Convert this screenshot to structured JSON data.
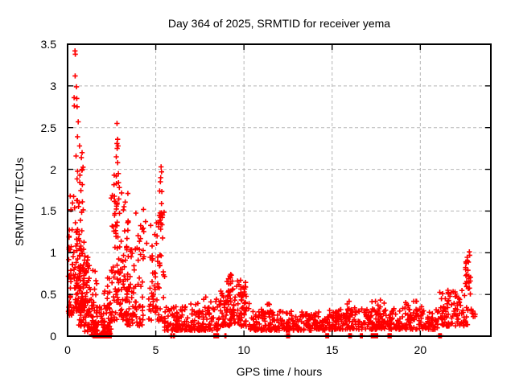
{
  "chart_data": {
    "type": "scatter",
    "title": "Day 364 of 2025, SRMTID for receiver yema",
    "xlabel": "GPS time / hours",
    "ylabel": "SRMTID / TECUs",
    "xlim": [
      0,
      24
    ],
    "ylim": [
      0,
      3.5
    ],
    "xticks": [
      0,
      5,
      10,
      15,
      20
    ],
    "xtick_labels": [
      "0",
      "5",
      "10",
      "15",
      "20"
    ],
    "yticks": [
      0,
      0.5,
      1,
      1.5,
      2,
      2.5,
      3,
      3.5
    ],
    "ytick_labels": [
      "0",
      "0.5",
      "1",
      "1.5",
      "2",
      "2.5",
      "3",
      "3.5"
    ],
    "grid": true,
    "grid_style": "dashed",
    "legend": null,
    "marker": {
      "shape": "plus",
      "color": "#ff0000",
      "size": 7,
      "stroke_width": 1.6
    },
    "axis_color": "#000000",
    "grid_color": "#b5b5b5",
    "background": "#ffffff",
    "seed": 1337,
    "notable_points": [
      [
        0.42,
        3.42
      ],
      [
        0.44,
        3.38
      ],
      [
        0.43,
        3.12
      ],
      [
        0.5,
        2.99
      ],
      [
        0.37,
        2.86
      ],
      [
        0.52,
        2.85
      ],
      [
        0.38,
        2.76
      ],
      [
        0.54,
        2.75
      ],
      [
        0.6,
        2.57
      ],
      [
        0.56,
        2.39
      ],
      [
        0.68,
        2.28
      ],
      [
        0.82,
        2.2
      ],
      [
        0.48,
        2.16
      ],
      [
        0.78,
        2.14
      ],
      [
        0.83,
        2.0
      ],
      [
        0.7,
        1.93
      ],
      [
        0.15,
        1.68
      ],
      [
        2.8,
        2.55
      ],
      [
        2.84,
        2.36
      ],
      [
        2.8,
        2.31
      ],
      [
        2.86,
        2.28
      ],
      [
        2.81,
        2.25
      ],
      [
        2.76,
        2.15
      ],
      [
        2.84,
        2.08
      ],
      [
        2.88,
        1.95
      ],
      [
        2.76,
        1.92
      ],
      [
        2.89,
        1.84
      ],
      [
        5.3,
        2.03
      ],
      [
        5.33,
        1.97
      ],
      [
        5.28,
        1.9
      ],
      [
        5.26,
        1.85
      ],
      [
        5.22,
        1.74
      ],
      [
        9.25,
        0.74
      ],
      [
        9.2,
        0.72
      ],
      [
        22.78,
        1.01
      ],
      [
        22.8,
        0.97
      ]
    ],
    "clusters": [
      [
        0.03,
        0.32,
        0.25,
        1.72,
        42,
        2.0
      ],
      [
        0.3,
        0.95,
        0.3,
        2.05,
        95,
        1.7
      ],
      [
        0.5,
        1.25,
        0.12,
        1.05,
        75,
        1.5
      ],
      [
        0.95,
        1.65,
        0.05,
        0.88,
        55,
        1.6
      ],
      [
        1.35,
        2.45,
        0.01,
        0.42,
        70,
        1.4
      ],
      [
        1.95,
        2.55,
        0.08,
        0.75,
        25,
        1.6
      ],
      [
        2.45,
        3.45,
        0.18,
        1.72,
        115,
        1.55
      ],
      [
        2.62,
        3.05,
        1.55,
        1.95,
        7,
        1.0
      ],
      [
        3.35,
        4.35,
        0.12,
        1.05,
        70,
        1.5
      ],
      [
        3.85,
        4.55,
        0.85,
        1.58,
        16,
        1.1
      ],
      [
        4.6,
        5.5,
        0.18,
        1.5,
        75,
        1.5
      ],
      [
        5.05,
        5.45,
        1.15,
        1.78,
        9,
        1.0
      ],
      [
        5.5,
        8.6,
        0.07,
        0.36,
        175,
        1.7
      ],
      [
        6.9,
        8.5,
        0.28,
        0.47,
        14,
        1.1
      ],
      [
        8.5,
        10.35,
        0.12,
        0.6,
        115,
        1.4
      ],
      [
        8.95,
        9.4,
        0.52,
        0.74,
        13,
        1.0
      ],
      [
        9.6,
        10.15,
        0.45,
        0.7,
        15,
        1.0
      ],
      [
        10.3,
        14.6,
        0.07,
        0.3,
        235,
        1.6
      ],
      [
        10.95,
        11.75,
        0.26,
        0.4,
        12,
        1.1
      ],
      [
        14.6,
        21.0,
        0.08,
        0.33,
        335,
        1.55
      ],
      [
        15.75,
        16.35,
        0.27,
        0.42,
        9,
        1.0
      ],
      [
        17.15,
        17.95,
        0.28,
        0.45,
        11,
        1.0
      ],
      [
        18.95,
        20.25,
        0.24,
        0.42,
        16,
        1.1
      ],
      [
        21.0,
        22.7,
        0.12,
        0.55,
        95,
        1.4
      ],
      [
        22.55,
        22.85,
        0.45,
        1.01,
        22,
        1.0
      ],
      [
        22.85,
        23.12,
        0.22,
        0.35,
        8,
        1.0
      ]
    ],
    "zero_marks": [
      [
        1.5,
        3
      ],
      [
        1.63,
        4
      ],
      [
        1.76,
        5
      ],
      [
        1.92,
        4
      ],
      [
        2.05,
        5
      ],
      [
        2.18,
        5
      ],
      [
        2.32,
        4
      ],
      [
        2.45,
        2
      ],
      [
        5.88,
        2
      ],
      [
        6.03,
        2
      ],
      [
        8.4,
        5
      ],
      [
        8.53,
        2
      ],
      [
        8.95,
        2
      ],
      [
        12.45,
        2
      ],
      [
        12.56,
        2
      ],
      [
        14.72,
        4
      ],
      [
        16.02,
        4
      ],
      [
        16.66,
        3
      ],
      [
        17.3,
        4
      ],
      [
        17.5,
        4
      ],
      [
        18.2,
        2
      ],
      [
        18.32,
        2
      ],
      [
        21.12,
        4
      ]
    ]
  }
}
